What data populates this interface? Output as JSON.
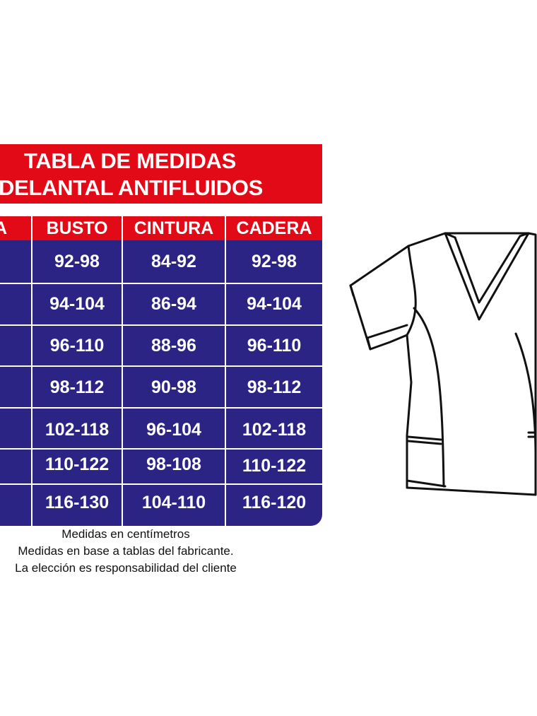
{
  "title": {
    "line1": "TABLA DE MEDIDAS",
    "line2": "DELANTAL ANTIFLUIDOS"
  },
  "table": {
    "headers": [
      "A",
      "BUSTO",
      "CINTURA",
      "CADERA"
    ],
    "rows": [
      {
        "busto": "92-98",
        "cintura": "84-92",
        "cadera": "92-98"
      },
      {
        "busto": "94-104",
        "cintura": "86-94",
        "cadera": "94-104"
      },
      {
        "busto": "96-110",
        "cintura": "88-96",
        "cadera": "96-110"
      },
      {
        "busto": "98-112",
        "cintura": "90-98",
        "cadera": "98-112"
      },
      {
        "busto": "102-118",
        "cintura": "96-104",
        "cadera": "102-118"
      },
      {
        "busto": "110-122",
        "cintura": "98-108",
        "cadera": "110-122"
      },
      {
        "busto": "116-130",
        "cintura": "104-110",
        "cadera": "116-120"
      }
    ]
  },
  "notes": [
    "Medidas en centímetros",
    "Medidas en base a tablas del fabricante.",
    "La elección es responsabilidad del cliente"
  ],
  "colors": {
    "red": "#e30a17",
    "blue": "#2b2485",
    "white": "#ffffff"
  },
  "icons": {
    "garment": "scrub-top-outline-icon"
  }
}
